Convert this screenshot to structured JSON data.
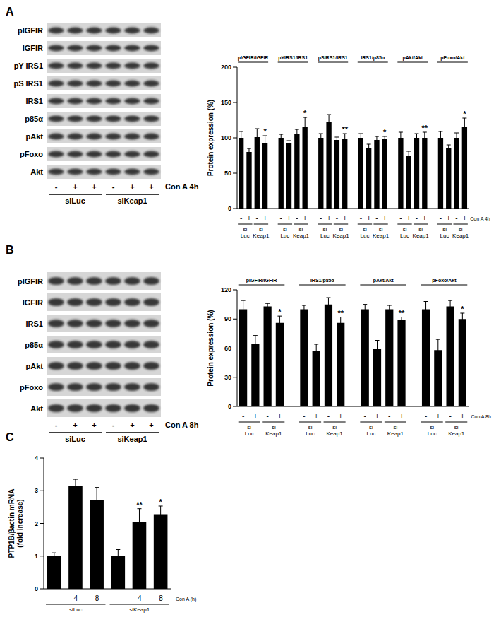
{
  "chart_data": [
    {
      "type": "bar",
      "title": "A",
      "y_label": "Protein expression (%)",
      "x_label": "Con A 4h",
      "categories": [
        "-",
        "+",
        "-",
        "+"
      ],
      "subgroups": [
        "si Luc",
        "si Keap1"
      ],
      "color": "#000000",
      "ylim": [
        0,
        200
      ],
      "yticks": [
        0,
        50,
        100,
        150,
        200
      ],
      "groups": [
        {
          "name": "pIGFIR/IGFIR",
          "values": [
            100,
            80,
            101,
            93
          ],
          "errors": [
            9,
            5,
            12,
            10
          ],
          "significance": [
            null,
            null,
            null,
            "*"
          ]
        },
        {
          "name": "pYIRS1/IRS1",
          "values": [
            100,
            92,
            106,
            115
          ],
          "errors": [
            5,
            4,
            6,
            14
          ],
          "significance": [
            null,
            null,
            null,
            "*"
          ]
        },
        {
          "name": "pSIRS1/IRS1",
          "values": [
            100,
            123,
            97,
            98
          ],
          "errors": [
            6,
            10,
            4,
            8
          ],
          "significance": [
            null,
            null,
            null,
            "**"
          ]
        },
        {
          "name": "IRS1/p85α",
          "values": [
            100,
            85,
            97,
            98
          ],
          "errors": [
            6,
            6,
            5,
            4
          ],
          "significance": [
            null,
            null,
            null,
            "*"
          ]
        },
        {
          "name": "pAkt/Akt",
          "values": [
            100,
            74,
            100,
            100
          ],
          "errors": [
            8,
            7,
            6,
            8
          ],
          "significance": [
            null,
            null,
            null,
            "**"
          ]
        },
        {
          "name": "pFoxo/Akt",
          "values": [
            100,
            85,
            100,
            115
          ],
          "errors": [
            9,
            5,
            7,
            13
          ],
          "significance": [
            null,
            null,
            null,
            "*"
          ]
        }
      ]
    },
    {
      "type": "bar",
      "title": "B",
      "y_label": "Protein expression (%)",
      "x_label": "Con A 8h",
      "categories": [
        "-",
        "+",
        "-",
        "+"
      ],
      "subgroups": [
        "si Luc",
        "si Keap1"
      ],
      "color": "#000000",
      "ylim": [
        0,
        120
      ],
      "yticks": [
        0,
        30,
        60,
        90,
        120
      ],
      "groups": [
        {
          "name": "pIGFIR/IGFIR",
          "values": [
            100,
            64,
            103,
            86
          ],
          "errors": [
            9,
            9,
            3,
            7
          ],
          "significance": [
            null,
            null,
            null,
            "*"
          ]
        },
        {
          "name": "IRS1/p85α",
          "values": [
            100,
            57,
            105,
            86
          ],
          "errors": [
            4,
            7,
            7,
            6
          ],
          "significance": [
            null,
            null,
            null,
            "**"
          ]
        },
        {
          "name": "pAkt/Akt",
          "values": [
            100,
            59,
            100,
            89
          ],
          "errors": [
            5,
            9,
            4,
            3
          ],
          "significance": [
            null,
            null,
            null,
            "**"
          ]
        },
        {
          "name": "pFoxo/Akt",
          "values": [
            100,
            58,
            103,
            90
          ],
          "errors": [
            8,
            11,
            6,
            6
          ],
          "significance": [
            null,
            null,
            null,
            "*"
          ]
        }
      ]
    },
    {
      "type": "bar",
      "title": "C",
      "y_label": [
        "PTP1B/βactin mRNA",
        "(fold increase)"
      ],
      "x_label": "Con A (h)",
      "categories": [
        "-",
        "4",
        "8",
        "-",
        "4",
        "8"
      ],
      "subgroups": [
        "siLuc",
        "siKeap1"
      ],
      "color": "#000000",
      "ylim": [
        0,
        4
      ],
      "yticks": [
        0,
        1,
        2,
        3,
        4
      ],
      "groups": [
        {
          "values": [
            1.0,
            3.15,
            2.72,
            1.0,
            2.05,
            2.28
          ],
          "errors": [
            0.1,
            0.2,
            0.38,
            0.2,
            0.4,
            0.25
          ],
          "significance": [
            null,
            null,
            null,
            null,
            "**",
            "*"
          ]
        }
      ]
    }
  ],
  "blots": [
    {
      "rows": [
        "pIGFIR",
        "IGFIR",
        "pY IRS1",
        "pS IRS1",
        "IRS1",
        "p85α",
        "pAkt",
        "pFoxo",
        "Akt"
      ],
      "lanes": [
        "-",
        "+",
        "+",
        "-",
        "+",
        "+"
      ],
      "groups": [
        "siLuc",
        "siKeap1"
      ],
      "treatment": "Con A 4h"
    },
    {
      "rows": [
        "pIGFIR",
        "IGFIR",
        "IRS1",
        "p85α",
        "pAkt",
        "pFoxo",
        "Akt"
      ],
      "lanes": [
        "-",
        "+",
        "+",
        "-",
        "+",
        "+"
      ],
      "groups": [
        "siLuc",
        "siKeap1"
      ],
      "treatment": "Con A 8h"
    }
  ]
}
